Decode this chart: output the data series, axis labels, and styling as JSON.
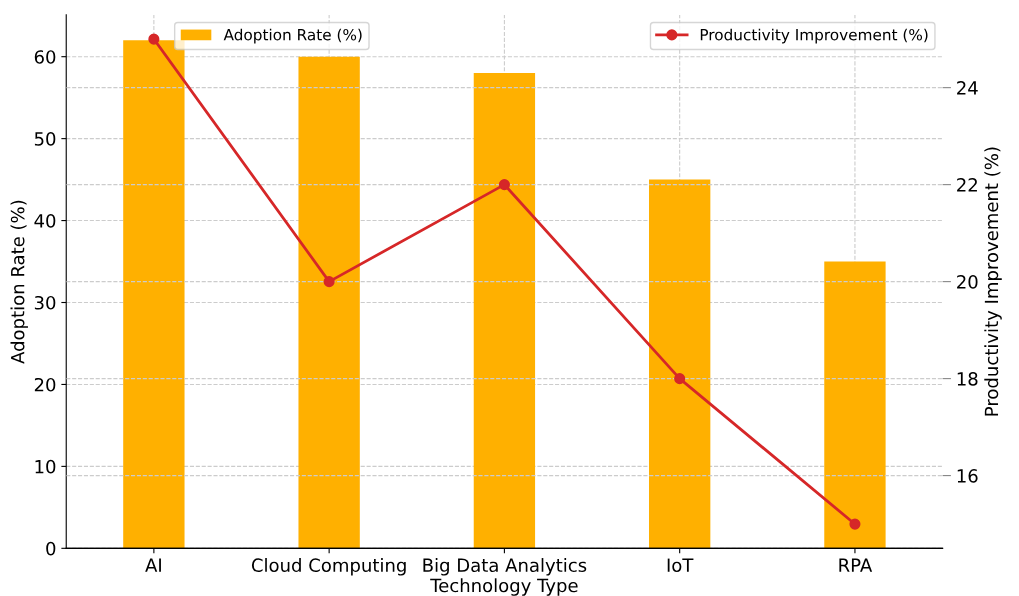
{
  "chart_data": {
    "type": "bar",
    "xlabel": "Technology Type",
    "ylabel": "Adoption Rate (%)",
    "y2label": "Productivity Improvement (%)",
    "categories": [
      "AI",
      "Cloud Computing",
      "Big Data Analytics",
      "IoT",
      "RPA"
    ],
    "series": [
      {
        "name": "Adoption Rate (%)",
        "color": "#ffb000",
        "values": [
          62,
          60,
          58,
          45,
          35
        ]
      },
      {
        "name": "Productivity Improvement (%)",
        "type": "line",
        "axis": "y2",
        "color": "#d62728",
        "marker": "circle",
        "values": [
          25,
          20,
          22,
          18,
          15
        ]
      }
    ],
    "ylim": [
      0,
      65.1
    ],
    "yticks": [
      0,
      10,
      20,
      30,
      40,
      50,
      60
    ],
    "y2lim": [
      14.5,
      25.5
    ],
    "y2ticks": [
      16,
      18,
      20,
      22,
      24
    ],
    "grid": true,
    "legend": "top"
  }
}
